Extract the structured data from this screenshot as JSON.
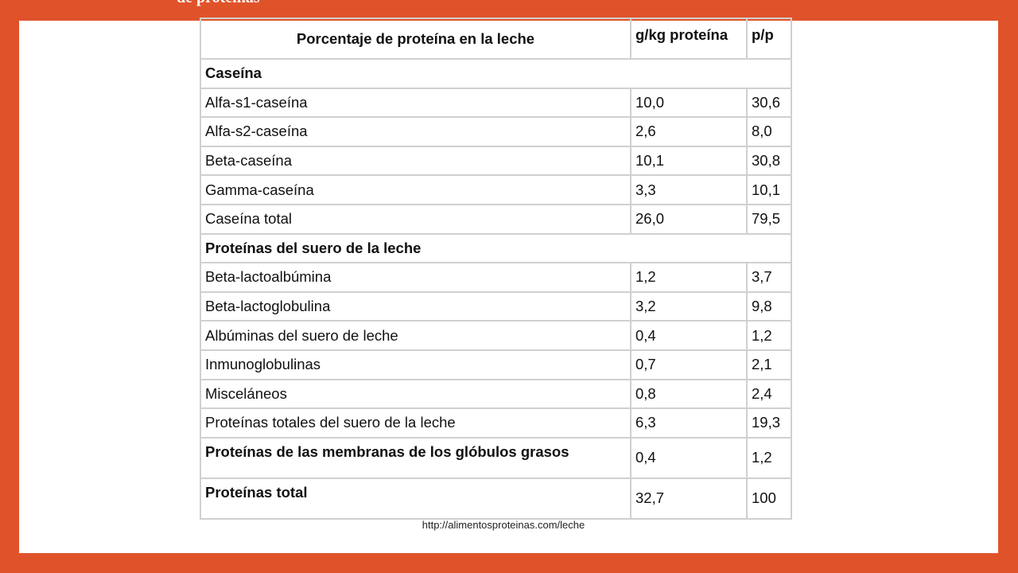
{
  "header_text": "de proteínas",
  "table": {
    "headers": [
      "Porcentaje de proteína en la leche",
      "g/kg proteína",
      "p/p"
    ],
    "section_casein": "Caseína",
    "casein_rows": [
      {
        "name": "Alfa-s1-caseína",
        "gkg": "10,0",
        "pp": "30,6"
      },
      {
        "name": "Alfa-s2-caseína",
        "gkg": "2,6",
        "pp": "8,0"
      },
      {
        "name": "Beta-caseína",
        "gkg": "10,1",
        "pp": "30,8"
      },
      {
        "name": "Gamma-caseína",
        "gkg": "3,3",
        "pp": "10,1"
      },
      {
        "name": "Caseína total",
        "gkg": "26,0",
        "pp": "79,5"
      }
    ],
    "section_whey": "Proteínas del suero de la leche",
    "whey_rows": [
      {
        "name": "Beta-lactoalbúmina",
        "gkg": "1,2",
        "pp": "3,7"
      },
      {
        "name": "Beta-lactoglobulina",
        "gkg": "3,2",
        "pp": "9,8"
      },
      {
        "name": "Albúminas del suero de leche",
        "gkg": "0,4",
        "pp": "1,2"
      },
      {
        "name": "Inmunoglobulinas",
        "gkg": "0,7",
        "pp": "2,1"
      },
      {
        "name": "Misceláneos",
        "gkg": "0,8",
        "pp": "2,4"
      },
      {
        "name": "Proteínas totales del suero de la leche",
        "gkg": "6,3",
        "pp": "19,3"
      }
    ],
    "membrane_row": {
      "name": "Proteínas de las membranas de los glóbulos grasos",
      "gkg": "0,4",
      "pp": "1,2"
    },
    "total_row": {
      "name": "Proteínas total",
      "gkg": "32,7",
      "pp": "100"
    }
  },
  "source": "http://alimentosproteinas.com/leche",
  "colors": {
    "background": "#e0532a",
    "slide": "#ffffff",
    "grid": "#d0d0d0"
  }
}
